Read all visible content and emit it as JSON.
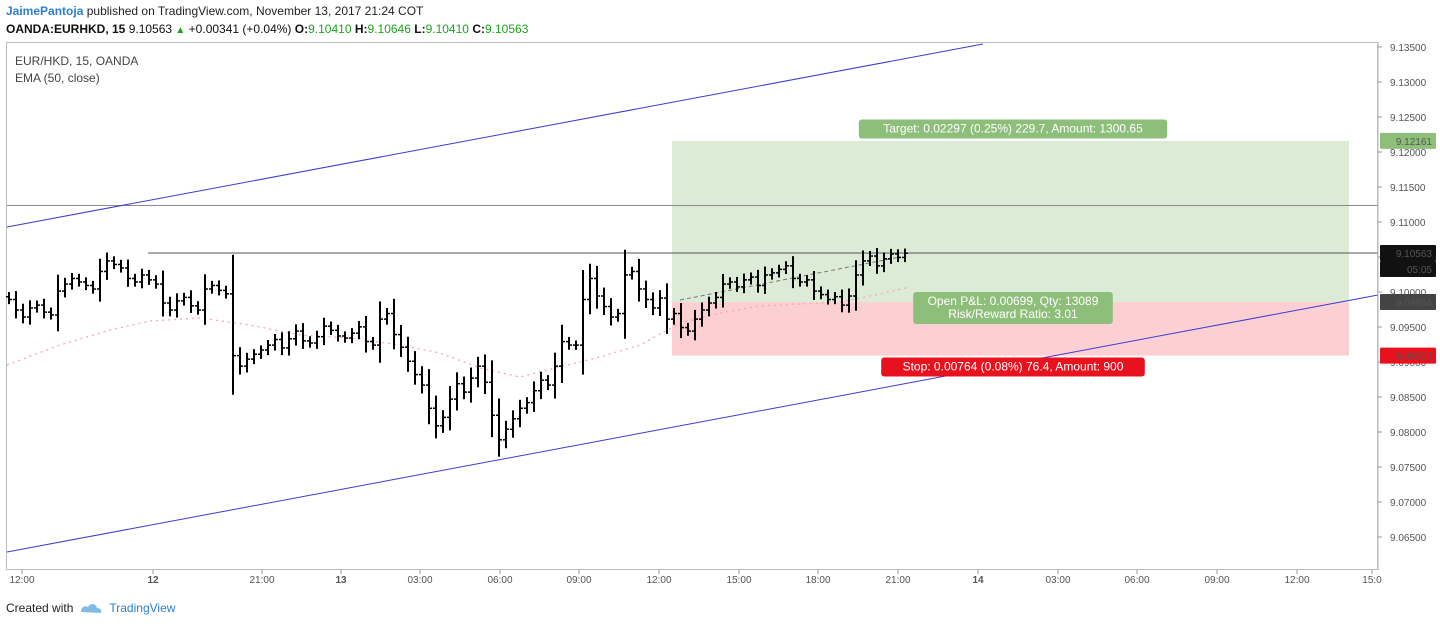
{
  "header": {
    "author": "JaimePantoja",
    "published": "published on TradingView.com, November 13, 2017 21:24 COT",
    "symbol_line": {
      "symbol": "OANDA:EURHKD, 15",
      "last": "9.10563",
      "change": "+0.00341 (+0.04%)",
      "o_label": "O:",
      "o": "9.10410",
      "h_label": "H:",
      "h": "9.10646",
      "l_label": "L:",
      "l": "9.10410",
      "c_label": "C:",
      "c": "9.10563"
    }
  },
  "legend": {
    "symbol": "EUR/HKD, 15, OANDA",
    "indicator": "EMA (50, close)"
  },
  "footer": {
    "created_with": "Created with",
    "brand": "TradingView"
  },
  "colors": {
    "candle": "#000000",
    "channel": "#3b3bd6",
    "ema": "#f2a9b0",
    "target_zone": "#dcebd6",
    "stop_zone": "#fcd0d2",
    "target_label": "#8dbf7a",
    "stop_label": "#e8121e",
    "pnl_label": "#8dbf7a"
  },
  "chart_data": {
    "type": "candlestick",
    "y_ticks": [
      "9.13500",
      "9.13000",
      "9.12500",
      "9.12000",
      "9.11500",
      "9.11000",
      "9.10500",
      "9.10000",
      "9.09500",
      "9.09000",
      "9.08500",
      "9.08000",
      "9.07500",
      "9.07000",
      "9.06500"
    ],
    "ylim": [
      9.061,
      9.136
    ],
    "x_ticks": [
      "12:00",
      "12",
      "21:00",
      "13",
      "03:00",
      "06:00",
      "09:00",
      "12:00",
      "15:00",
      "18:00",
      "21:00",
      "14",
      "03:00",
      "06:00",
      "09:00",
      "12:00",
      "15:0"
    ],
    "price_labels": {
      "target": "9.12161",
      "last": "9.10563",
      "countdown": "05:05",
      "entry": "9.09864",
      "stop": "9.09100"
    },
    "levels": {
      "target": 9.12161,
      "last": 9.10563,
      "entry": 9.09864,
      "stop": 9.091,
      "horizontal_line": 9.1124
    },
    "annotations": {
      "target_text": "Target: 0.02297 (0.25%) 229.7, Amount: 1300.65",
      "pnl_text": "Open P&L: 0.00699, Qty: 13089",
      "rr_text": "Risk/Reward Ratio: 3.01",
      "stop_text": "Stop: 0.00764 (0.08%) 76.4, Amount: 900"
    },
    "closes": [
      9.099,
      9.0975,
      9.0965,
      9.0978,
      9.0982,
      9.0972,
      9.0968,
      9.1002,
      9.1012,
      9.102,
      9.1015,
      9.101,
      9.1005,
      9.103,
      9.1045,
      9.104,
      9.1035,
      9.102,
      9.1015,
      9.1025,
      9.1018,
      9.1012,
      9.0985,
      9.0975,
      9.0988,
      9.0993,
      9.0981,
      9.0975,
      9.1005,
      9.101,
      9.1003,
      9.0998,
      9.091,
      9.0895,
      9.0905,
      9.0912,
      9.0918,
      9.0925,
      9.0933,
      9.0921,
      9.0934,
      9.0945,
      9.0931,
      9.0928,
      9.0937,
      9.0952,
      9.0946,
      9.0938,
      9.0935,
      9.0942,
      9.0951,
      9.093,
      9.0925,
      9.0962,
      9.097,
      9.094,
      9.0922,
      9.0902,
      9.0883,
      9.0868,
      9.0835,
      9.081,
      9.0822,
      9.0848,
      9.087,
      9.0858,
      9.0878,
      9.0895,
      9.0872,
      9.0825,
      9.079,
      9.0805,
      9.082,
      9.0835,
      9.0843,
      9.086,
      9.0875,
      9.0868,
      9.0895,
      9.093,
      9.0925,
      9.0925,
      9.099,
      9.102,
      9.0995,
      9.098,
      9.0965,
      9.097,
      9.1025,
      9.103,
      9.1005,
      9.099,
      9.0978,
      9.0992,
      9.0962,
      9.097,
      9.095,
      9.0945,
      9.0962,
      9.0975,
      9.0985,
      9.0993,
      9.1012,
      9.1015,
      9.1008,
      9.1018,
      9.1022,
      9.101,
      9.1025,
      9.1028,
      9.1033,
      9.1038,
      9.102,
      9.1015,
      9.1018,
      9.1002,
      9.0997,
      9.099,
      9.0994,
      9.0982,
      9.0995,
      9.1025,
      9.1045,
      9.1052,
      9.1038,
      9.1048,
      9.1055,
      9.105,
      9.1056
    ]
  }
}
